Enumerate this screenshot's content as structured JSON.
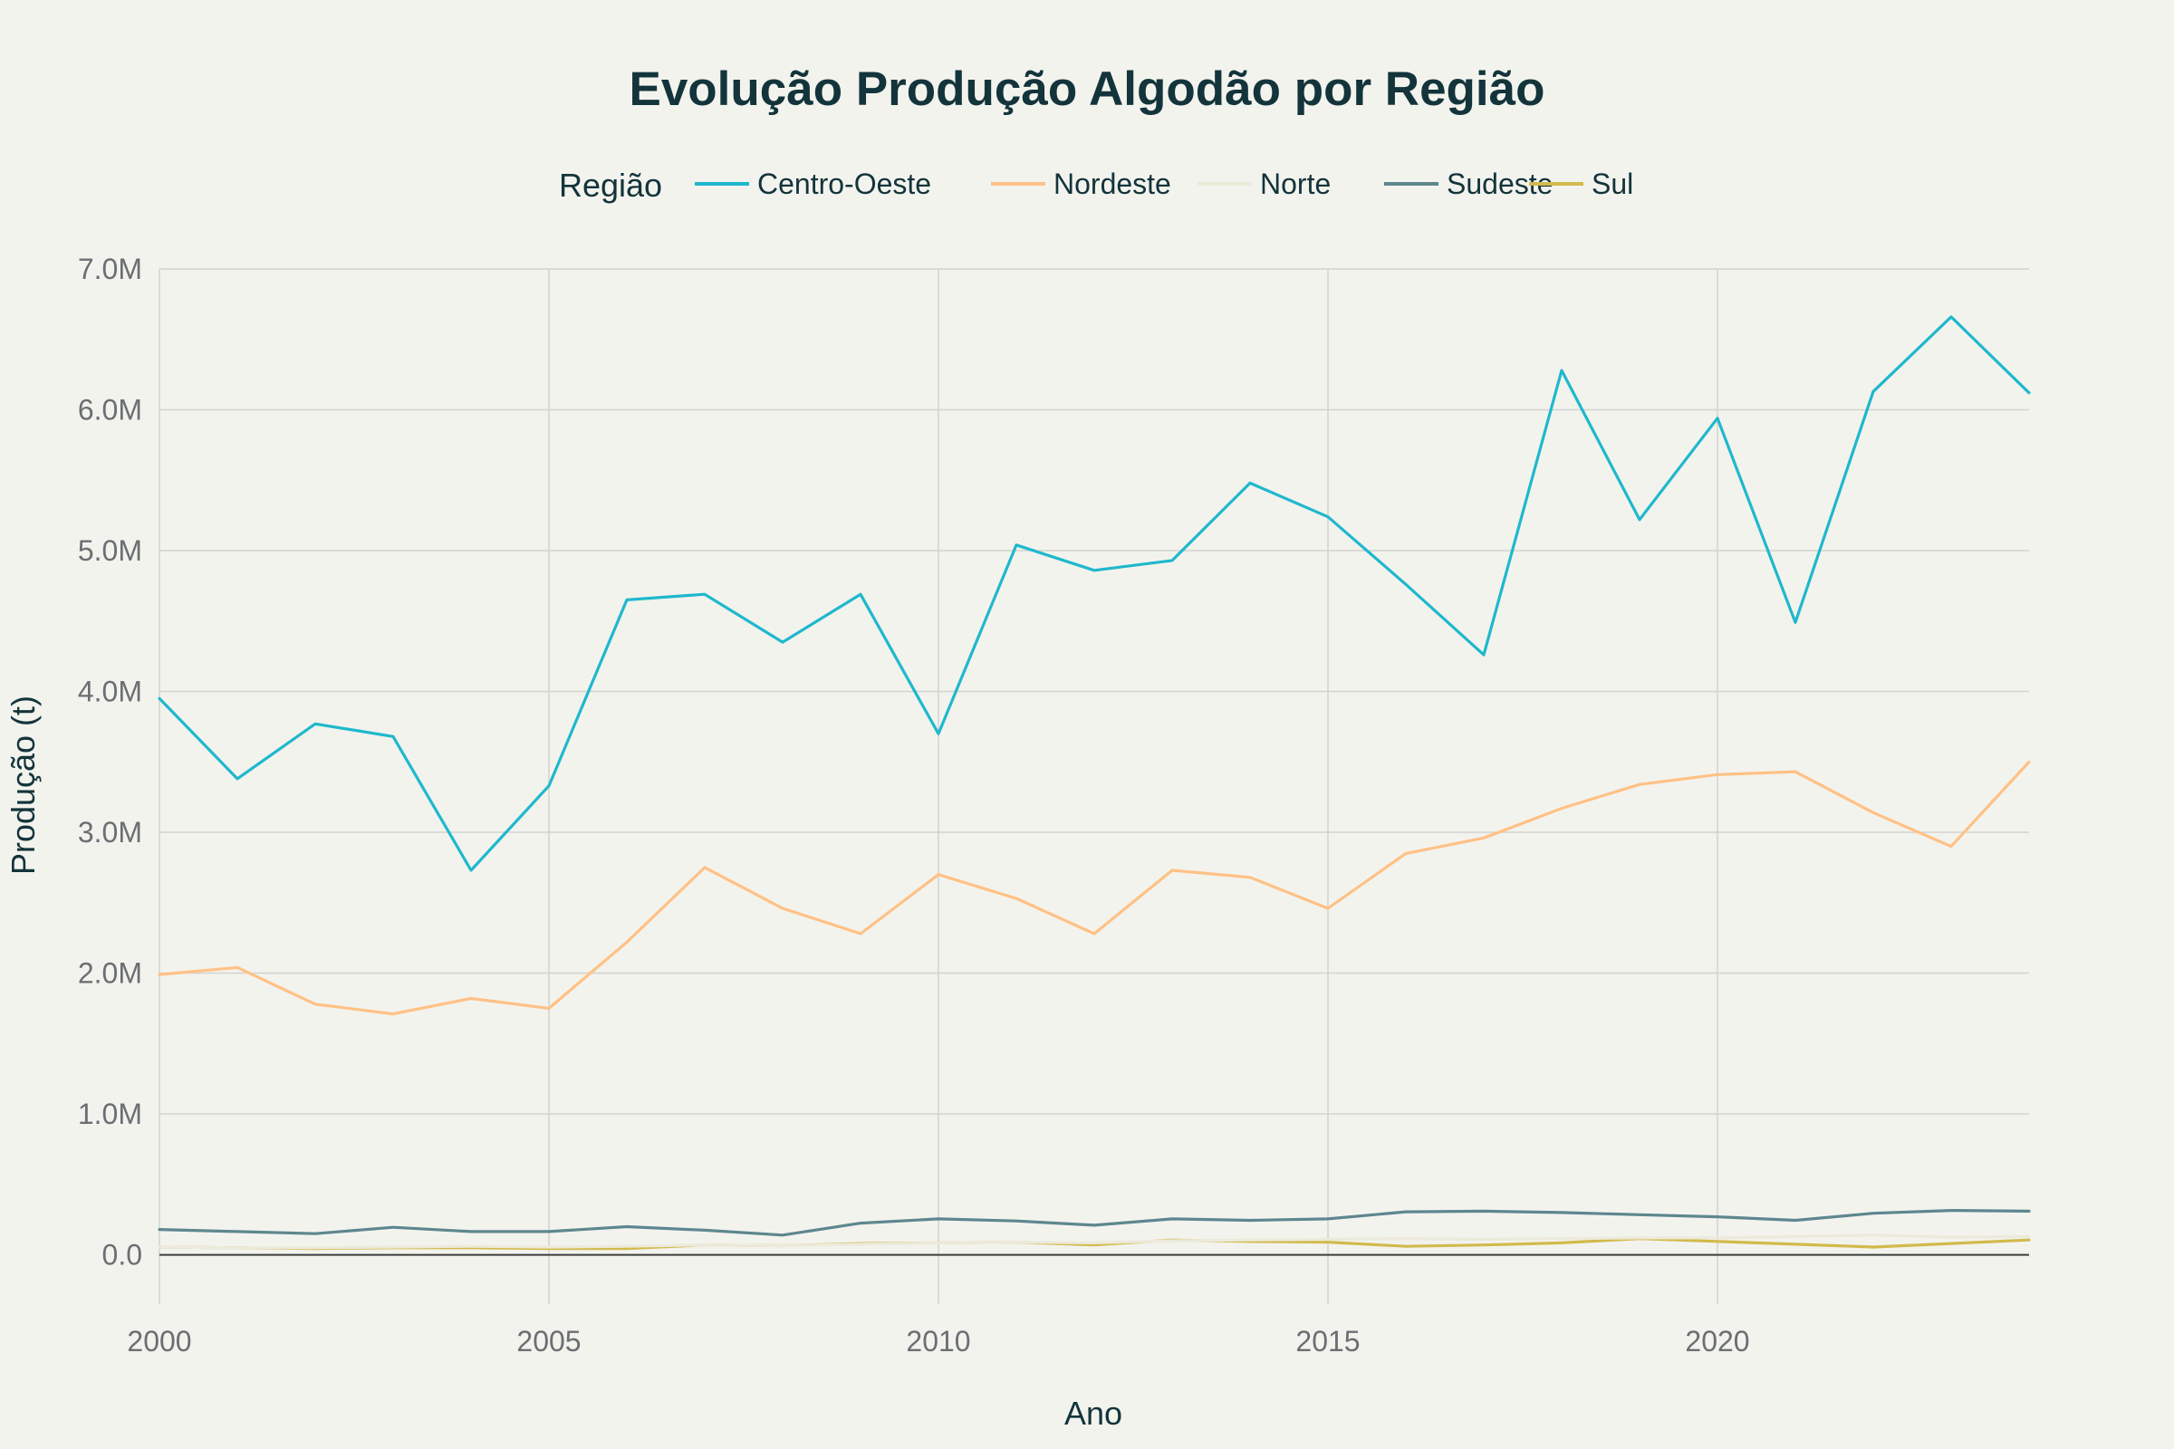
{
  "chart_data": {
    "type": "line",
    "title": "Evolução Produção Algodão por Região",
    "xlabel": "Ano",
    "ylabel": "Produção (t)",
    "legend_title": "Região",
    "legend_position": "top-center",
    "grid": true,
    "xlim": [
      2000,
      2024
    ],
    "ylim": [
      -350000,
      7000000
    ],
    "x_ticks": [
      2000,
      2005,
      2010,
      2015,
      2020
    ],
    "y_ticks": [
      0,
      1000000,
      2000000,
      3000000,
      4000000,
      5000000,
      6000000,
      7000000
    ],
    "y_tick_labels": [
      "0.0",
      "1.0M",
      "2.0M",
      "3.0M",
      "4.0M",
      "5.0M",
      "6.0M",
      "7.0M"
    ],
    "x": [
      2000,
      2001,
      2002,
      2003,
      2004,
      2005,
      2006,
      2007,
      2008,
      2009,
      2010,
      2011,
      2012,
      2013,
      2014,
      2015,
      2016,
      2017,
      2018,
      2019,
      2020,
      2021,
      2022,
      2023,
      2024
    ],
    "series": [
      {
        "name": "Centro-Oeste",
        "color": "#1fb8cd",
        "values": [
          3950000,
          3380000,
          3770000,
          3680000,
          2730000,
          3330000,
          4650000,
          4690000,
          4350000,
          4690000,
          3700000,
          5040000,
          4860000,
          4930000,
          5480000,
          5240000,
          4760000,
          4260000,
          6280000,
          5220000,
          5940000,
          4490000,
          6130000,
          6660000,
          6120000
        ]
      },
      {
        "name": "Nordeste",
        "color": "#ffc185",
        "values": [
          1990000,
          2040000,
          1780000,
          1710000,
          1820000,
          1750000,
          2220000,
          2750000,
          2460000,
          2280000,
          2700000,
          2530000,
          2280000,
          2730000,
          2680000,
          2460000,
          2850000,
          2960000,
          3170000,
          3340000,
          3410000,
          3430000,
          3140000,
          2900000,
          3500000
        ]
      },
      {
        "name": "Norte",
        "color": "#eceadb",
        "values": [
          55000,
          50000,
          50000,
          55000,
          60000,
          55000,
          60000,
          70000,
          65000,
          75000,
          85000,
          90000,
          85000,
          100000,
          105000,
          110000,
          115000,
          110000,
          115000,
          120000,
          120000,
          130000,
          140000,
          125000,
          130000
        ]
      },
      {
        "name": "Sudeste",
        "color": "#5d878f",
        "values": [
          180000,
          165000,
          150000,
          195000,
          165000,
          165000,
          200000,
          175000,
          140000,
          225000,
          255000,
          240000,
          210000,
          255000,
          245000,
          255000,
          305000,
          310000,
          300000,
          285000,
          270000,
          245000,
          295000,
          315000,
          310000
        ]
      },
      {
        "name": "Sul",
        "color": "#d2ba4c",
        "values": [
          55000,
          50000,
          45000,
          50000,
          50000,
          45000,
          45000,
          70000,
          65000,
          80000,
          85000,
          90000,
          70000,
          105000,
          95000,
          90000,
          60000,
          70000,
          85000,
          115000,
          95000,
          75000,
          55000,
          80000,
          105000
        ]
      }
    ]
  }
}
